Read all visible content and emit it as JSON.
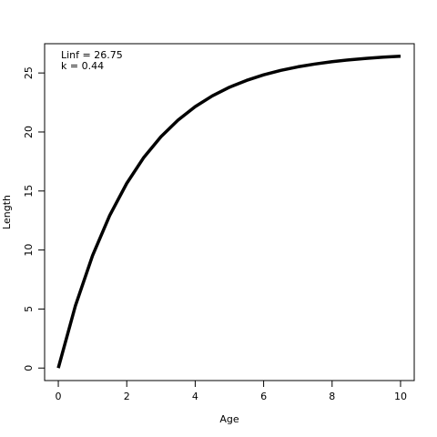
{
  "chart_data": {
    "type": "line",
    "xlabel": "Age",
    "ylabel": "Length",
    "annotations": [
      "Linf = 26.75",
      "k = 0.44"
    ],
    "x": [
      0,
      0.5,
      1,
      1.5,
      2,
      2.5,
      3,
      3.5,
      4,
      4.5,
      5,
      5.5,
      6,
      6.5,
      7,
      7.5,
      8,
      8.5,
      9,
      9.5,
      10
    ],
    "series": [
      {
        "color": "#000000",
        "values": [
          0,
          5.28,
          9.52,
          12.92,
          15.65,
          17.85,
          19.6,
          21.01,
          22.15,
          23.06,
          23.79,
          24.37,
          24.84,
          25.22,
          25.52,
          25.76,
          25.96,
          26.11,
          26.24,
          26.34,
          26.42
        ]
      }
    ],
    "xlim": [
      -0.4,
      10.4
    ],
    "ylim": [
      -1.06,
      27.48
    ],
    "xticks": [
      0,
      2,
      4,
      6,
      8,
      10
    ],
    "yticks": [
      0,
      5,
      10,
      15,
      20,
      25
    ]
  }
}
